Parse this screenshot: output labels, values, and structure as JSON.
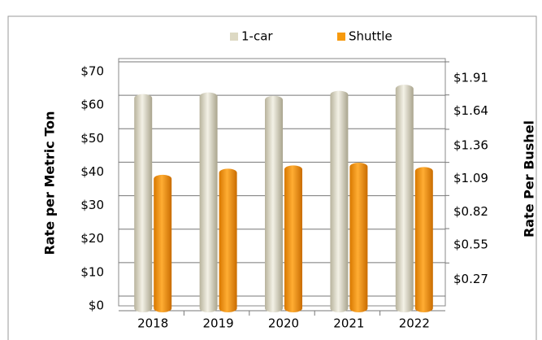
{
  "chart_data": {
    "type": "bar",
    "categories": [
      "2018",
      "2019",
      "2020",
      "2021",
      "2022"
    ],
    "series": [
      {
        "name": "1-car",
        "color": "#ddd9c3",
        "values": [
          62.3,
          62.8,
          61.8,
          63.3,
          65.1
        ]
      },
      {
        "name": "Shuttle",
        "color": "#f79a0e",
        "values": [
          38.2,
          40,
          41,
          41.8,
          40.5
        ]
      }
    ],
    "y_label": "Rate per Metric Ton",
    "y2_label": "Rate Per Bushel",
    "ylim": [
      0,
      70
    ],
    "yticks": [
      {
        "value": 0,
        "label": "$0"
      },
      {
        "value": 10,
        "label": "$10"
      },
      {
        "value": 20,
        "label": "$20"
      },
      {
        "value": 30,
        "label": "$30"
      },
      {
        "value": 40,
        "label": "$40"
      },
      {
        "value": 50,
        "label": "$50"
      },
      {
        "value": 60,
        "label": "$60"
      },
      {
        "value": 70,
        "label": "$70"
      }
    ],
    "y2lim": [
      0,
      1.91
    ],
    "y2ticks": [
      {
        "value": 0.27,
        "label": "$0.27"
      },
      {
        "value": 0.55,
        "label": "$0.55"
      },
      {
        "value": 0.82,
        "label": "$0.82"
      },
      {
        "value": 1.09,
        "label": "$1.09"
      },
      {
        "value": 1.36,
        "label": "$1.36"
      },
      {
        "value": 1.64,
        "label": "$1.64"
      },
      {
        "value": 1.91,
        "label": "$1.91"
      }
    ],
    "grid": true,
    "legend": "top"
  }
}
